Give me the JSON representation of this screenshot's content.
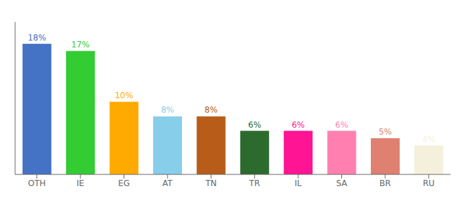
{
  "chart_data": {
    "type": "bar",
    "categories": [
      "OTH",
      "IE",
      "EG",
      "AT",
      "TN",
      "TR",
      "IL",
      "SA",
      "BR",
      "RU"
    ],
    "values": [
      18,
      17,
      10,
      8,
      8,
      6,
      6,
      6,
      5,
      4
    ],
    "value_labels": [
      "18%",
      "17%",
      "10%",
      "8%",
      "8%",
      "6%",
      "6%",
      "6%",
      "5%",
      "4%"
    ],
    "data_labels": true,
    "colors": [
      "#4472c4",
      "#33cc33",
      "#ffaa00",
      "#87ceeb",
      "#b85c1a",
      "#2d6a2d",
      "#ff1493",
      "#ff80b0",
      "#e08070",
      "#f5f0dc"
    ],
    "ylim": [
      0,
      21
    ],
    "tick_labels": "x",
    "grid": false
  }
}
